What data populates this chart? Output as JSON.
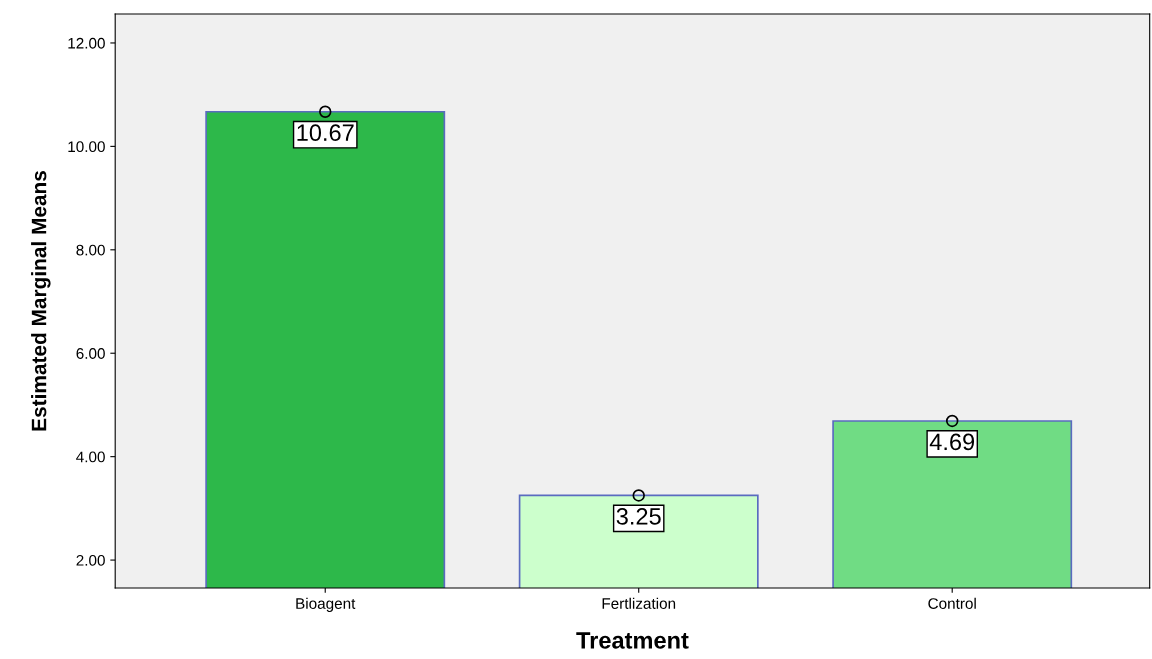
{
  "chart_data": {
    "type": "bar",
    "xlabel": "Treatment",
    "ylabel": "Estimated Marginal Means",
    "categories": [
      "Bioagent",
      "Fertlization",
      "Control"
    ],
    "series": [
      {
        "colors": [
          "#2db84a",
          "#ccffcc",
          "#70dc84"
        ],
        "values": [
          10.67,
          3.25,
          4.69
        ],
        "value_labels": [
          "10.67",
          "3.25",
          "4.69"
        ]
      },
      {
        "type": "scatter",
        "x": [
          "Bioagent",
          "Fertlization",
          "Control"
        ],
        "color": "#000000",
        "values": [
          10.67,
          3.25,
          4.69
        ],
        "marker": "circle"
      }
    ],
    "ylim": [
      1.46,
      12.56
    ],
    "yticks": [
      {
        "value": 2,
        "label": "2.00"
      },
      {
        "value": 4,
        "label": "4.00"
      },
      {
        "value": 6,
        "label": "6.00"
      },
      {
        "value": 8,
        "label": "8.00"
      },
      {
        "value": 10,
        "label": "10.00"
      },
      {
        "value": 12,
        "label": "12.00"
      }
    ],
    "grid": false,
    "legend": false
  }
}
